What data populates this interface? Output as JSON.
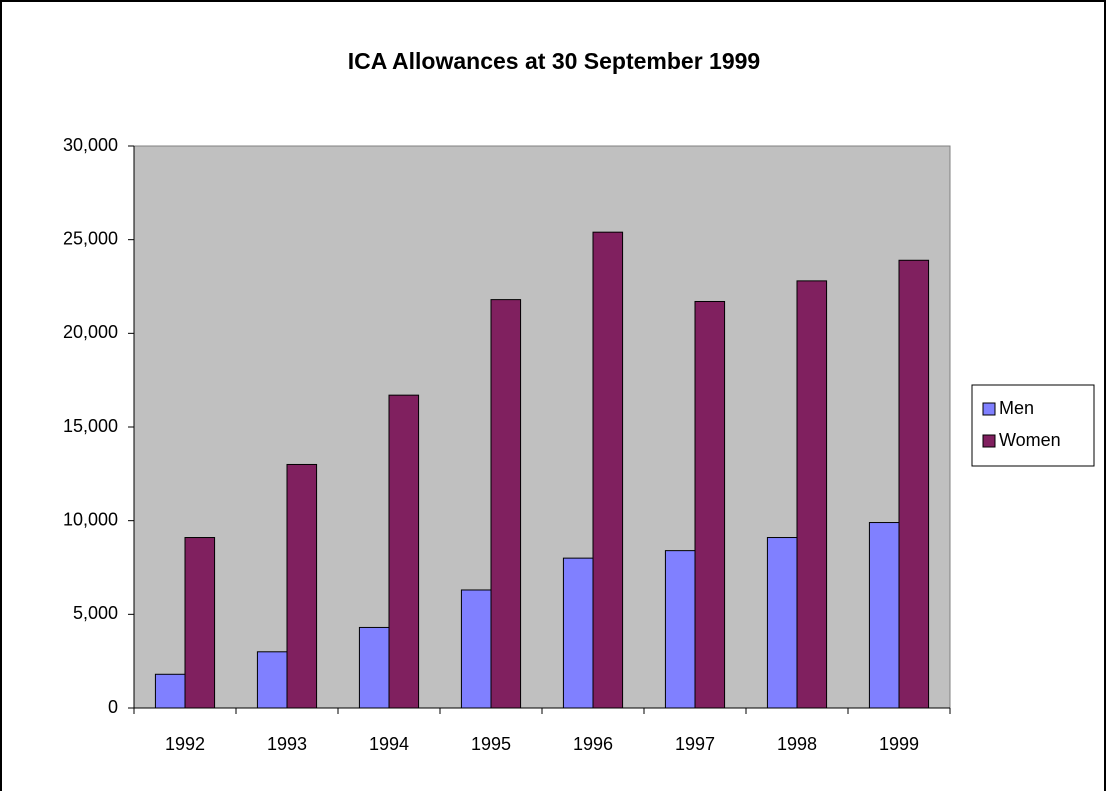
{
  "chart_data": {
    "type": "bar",
    "title": "ICA Allowances at 30 September 1999",
    "categories": [
      "1992",
      "1993",
      "1994",
      "1995",
      "1996",
      "1997",
      "1998",
      "1999"
    ],
    "series": [
      {
        "name": "Men",
        "color": "#8080ff",
        "values": [
          1800,
          3000,
          4300,
          6300,
          8000,
          8400,
          9100,
          9900
        ]
      },
      {
        "name": "Women",
        "color": "#80205f",
        "values": [
          9100,
          13000,
          16700,
          21800,
          25400,
          21700,
          22800,
          23900
        ]
      }
    ],
    "ylim": [
      0,
      30000
    ],
    "yticks": [
      0,
      {
        "value": 5000,
        "label": "5,000"
      },
      {
        "value": 10000,
        "label": "10,000"
      },
      {
        "value": 15000,
        "label": "15,000"
      },
      {
        "value": 20000,
        "label": "20,000"
      },
      {
        "value": 25000,
        "label": "25,000"
      },
      {
        "value": 30000,
        "label": "30,000"
      }
    ],
    "legend": "right"
  }
}
